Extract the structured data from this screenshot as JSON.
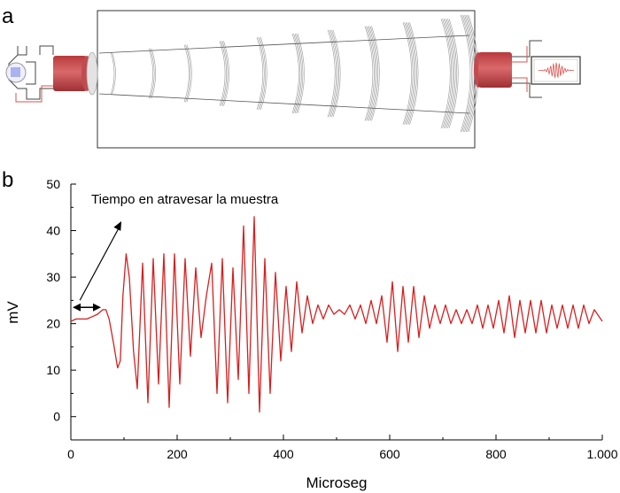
{
  "panels": {
    "a": "a",
    "b": "b"
  },
  "schematic": {
    "colors": {
      "transducer": "#c0474a",
      "wire": "#d9534f",
      "frame": "#333333",
      "sample_box": "#444444",
      "wave": "#9a9a9a"
    }
  },
  "chart_data": {
    "type": "line",
    "title": "",
    "xlabel": "Microseg",
    "ylabel": "mV",
    "xlim": [
      0,
      1000
    ],
    "ylim": [
      -5,
      50
    ],
    "x_ticks": [
      0,
      200,
      400,
      600,
      800,
      1000
    ],
    "x_tick_labels": [
      "0",
      "200",
      "400",
      "600",
      "800",
      "1.000"
    ],
    "y_ticks": [
      0,
      10,
      20,
      30,
      40,
      50
    ],
    "y_tick_labels": [
      "0",
      "10",
      "20",
      "30",
      "40",
      "50"
    ],
    "grid": false,
    "series_color": "#d62020",
    "annotation": {
      "text": "Tiempo en atravesar la muestra",
      "span": [
        0,
        60
      ],
      "level": 23.5
    },
    "series": [
      {
        "x": [
          0,
          10,
          20,
          30,
          40,
          50,
          60,
          66,
          72,
          80,
          88,
          93,
          98,
          104,
          110,
          118,
          125,
          135,
          145,
          155,
          165,
          175,
          185,
          195,
          205,
          215,
          225,
          235,
          245,
          255,
          265,
          275,
          285,
          295,
          305,
          315,
          325,
          335,
          345,
          355,
          365,
          375,
          385,
          395,
          405,
          415,
          425,
          435,
          445,
          455,
          465,
          475,
          485,
          495,
          505,
          515,
          525,
          535,
          545,
          555,
          565,
          575,
          585,
          595,
          605,
          615,
          625,
          635,
          645,
          655,
          665,
          675,
          685,
          695,
          705,
          715,
          725,
          735,
          745,
          755,
          765,
          775,
          785,
          795,
          805,
          815,
          825,
          835,
          845,
          855,
          865,
          875,
          885,
          895,
          905,
          915,
          925,
          935,
          945,
          955,
          965,
          975,
          985,
          1000
        ],
        "y": [
          20.5,
          21,
          21,
          21,
          21.5,
          22,
          23,
          23,
          21,
          16,
          10.5,
          12,
          26,
          35,
          30,
          14,
          6,
          33,
          3,
          34,
          7,
          35,
          2,
          35,
          7,
          34,
          13,
          32,
          17,
          26,
          33,
          5,
          34,
          3,
          32,
          8,
          41,
          5,
          43,
          1,
          34,
          5,
          31,
          12,
          28,
          14,
          29,
          18,
          26,
          20,
          24,
          21,
          24,
          22,
          23,
          22,
          24,
          21,
          24,
          20,
          25,
          20,
          26,
          16,
          29,
          14,
          28,
          16,
          28,
          17,
          26,
          19,
          24,
          20,
          24,
          20,
          23,
          20,
          23,
          20,
          24,
          19,
          24,
          19,
          25,
          18,
          26,
          17,
          25,
          18,
          25,
          18,
          25,
          18,
          24,
          19,
          24,
          19,
          24,
          19,
          24,
          20,
          23,
          20.5
        ]
      }
    ]
  }
}
